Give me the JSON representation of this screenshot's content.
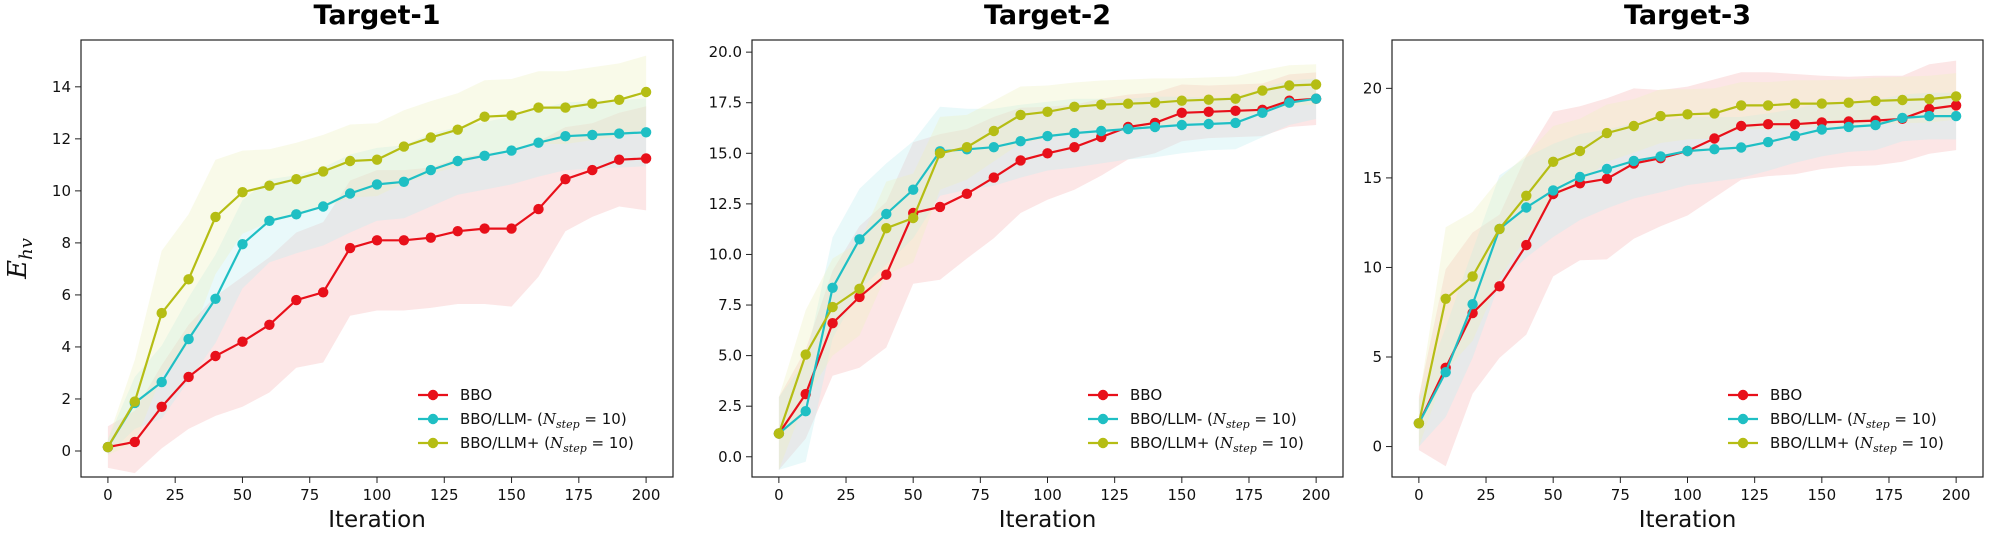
{
  "chart_data": [
    {
      "type": "line",
      "title": "Target-1",
      "xlabel": "Iteration",
      "ylabel": "E_hv",
      "xlim": [
        -10,
        210
      ],
      "ylim": [
        -1,
        15.8
      ],
      "xticks": [
        0,
        25,
        50,
        75,
        100,
        125,
        150,
        175,
        200
      ],
      "yticks": [
        0,
        2,
        4,
        6,
        8,
        10,
        12,
        14
      ],
      "ytick_decimals": 0,
      "x": [
        0,
        10,
        20,
        30,
        40,
        50,
        60,
        70,
        80,
        90,
        100,
        110,
        120,
        130,
        140,
        150,
        160,
        170,
        180,
        190,
        200
      ],
      "legend_position": "lower-right",
      "series": [
        {
          "name": "BBO",
          "color": "#e8101a",
          "fill": "#f6b8b8",
          "values": [
            0.15,
            0.35,
            1.7,
            2.85,
            3.65,
            4.2,
            4.85,
            5.8,
            6.1,
            7.8,
            8.1,
            8.1,
            8.2,
            8.45,
            8.55,
            8.55,
            9.3,
            10.45,
            10.8,
            11.2,
            11.25
          ],
          "band": [
            0.8,
            1.2,
            1.6,
            2.0,
            2.3,
            2.5,
            2.6,
            2.6,
            2.7,
            2.6,
            2.7,
            2.7,
            2.7,
            2.8,
            2.9,
            3.0,
            2.6,
            2.0,
            1.8,
            1.8,
            2.0
          ]
        },
        {
          "name": "BBO/LLM- (N_step = 10)",
          "color": "#1fbfc4",
          "fill": "#bfeef0",
          "values": [
            0.15,
            1.85,
            2.65,
            4.3,
            5.85,
            7.95,
            8.85,
            9.1,
            9.4,
            9.9,
            10.25,
            10.35,
            10.8,
            11.15,
            11.35,
            11.55,
            11.85,
            12.1,
            12.15,
            12.2,
            12.25
          ],
          "band": [
            0.3,
            1.0,
            1.4,
            1.6,
            1.7,
            1.7,
            1.6,
            1.5,
            1.5,
            1.5,
            1.4,
            1.4,
            1.4,
            1.3,
            1.3,
            1.3,
            1.3,
            1.3,
            1.3,
            1.3,
            1.3
          ]
        },
        {
          "name": "BBO/LLM+ (N_step = 10)",
          "color": "#b5bd14",
          "fill": "#eef1bf",
          "values": [
            0.15,
            1.9,
            5.3,
            6.6,
            9.0,
            9.95,
            10.2,
            10.45,
            10.75,
            11.15,
            11.2,
            11.7,
            12.05,
            12.35,
            12.85,
            12.9,
            13.2,
            13.2,
            13.35,
            13.5,
            13.8
          ],
          "band": [
            0.3,
            1.6,
            2.4,
            2.5,
            2.2,
            1.6,
            1.4,
            1.4,
            1.4,
            1.4,
            1.4,
            1.4,
            1.4,
            1.4,
            1.4,
            1.4,
            1.4,
            1.4,
            1.4,
            1.4,
            1.4
          ]
        }
      ]
    },
    {
      "type": "line",
      "title": "Target-2",
      "xlabel": "Iteration",
      "ylabel": "",
      "xlim": [
        -10,
        210
      ],
      "ylim": [
        -1.0,
        20.6
      ],
      "xticks": [
        0,
        25,
        50,
        75,
        100,
        125,
        150,
        175,
        200
      ],
      "yticks": [
        0.0,
        2.5,
        5.0,
        7.5,
        10.0,
        12.5,
        15.0,
        17.5,
        20.0
      ],
      "ytick_decimals": 1,
      "x": [
        0,
        10,
        20,
        30,
        40,
        50,
        60,
        70,
        80,
        90,
        100,
        110,
        120,
        130,
        140,
        150,
        160,
        170,
        180,
        190,
        200
      ],
      "legend_position": "lower-right",
      "series": [
        {
          "name": "BBO",
          "color": "#e8101a",
          "fill": "#f6b8b8",
          "values": [
            1.15,
            3.1,
            6.6,
            7.9,
            9.0,
            12.05,
            12.35,
            13.0,
            13.8,
            14.65,
            15.0,
            15.3,
            15.8,
            16.3,
            16.5,
            17.0,
            17.05,
            17.1,
            17.15,
            17.6,
            17.7
          ],
          "band": [
            1.8,
            2.2,
            2.6,
            3.5,
            3.6,
            3.5,
            3.6,
            3.2,
            3.0,
            2.6,
            2.3,
            2.1,
            1.9,
            1.6,
            1.5,
            1.4,
            1.3,
            1.3,
            1.3,
            1.3,
            1.3
          ]
        },
        {
          "name": "BBO/LLM- (N_step = 10)",
          "color": "#1fbfc4",
          "fill": "#bfeef0",
          "values": [
            1.15,
            2.25,
            8.35,
            10.75,
            12.0,
            13.2,
            15.1,
            15.2,
            15.3,
            15.6,
            15.85,
            16.0,
            16.1,
            16.2,
            16.3,
            16.4,
            16.45,
            16.5,
            17.0,
            17.5,
            17.7
          ],
          "band": [
            1.8,
            2.5,
            2.5,
            2.5,
            2.5,
            2.4,
            2.2,
            2.0,
            1.9,
            1.8,
            1.7,
            1.7,
            1.6,
            1.5,
            1.5,
            1.4,
            1.3,
            1.3,
            1.2,
            1.1,
            1.0
          ]
        },
        {
          "name": "BBO/LLM+ (N_step = 10)",
          "color": "#b5bd14",
          "fill": "#eef1bf",
          "values": [
            1.15,
            5.05,
            7.4,
            8.3,
            11.3,
            11.8,
            15.0,
            15.3,
            16.1,
            16.9,
            17.05,
            17.3,
            17.4,
            17.45,
            17.5,
            17.6,
            17.65,
            17.7,
            18.1,
            18.35,
            18.4
          ],
          "band": [
            1.8,
            2.2,
            2.4,
            2.3,
            2.3,
            2.2,
            1.8,
            1.6,
            1.5,
            1.4,
            1.3,
            1.2,
            1.2,
            1.2,
            1.2,
            1.1,
            1.1,
            1.1,
            1.0,
            1.0,
            1.0
          ]
        }
      ]
    },
    {
      "type": "line",
      "title": "Target-3",
      "xlabel": "Iteration",
      "ylabel": "",
      "xlim": [
        -10,
        210
      ],
      "ylim": [
        -1.7,
        22.7
      ],
      "xticks": [
        0,
        25,
        50,
        75,
        100,
        125,
        150,
        175,
        200
      ],
      "yticks": [
        0,
        5,
        10,
        15,
        20
      ],
      "ytick_decimals": 0,
      "x": [
        0,
        10,
        20,
        30,
        40,
        50,
        60,
        70,
        80,
        90,
        100,
        110,
        120,
        130,
        140,
        150,
        160,
        170,
        180,
        190,
        200
      ],
      "legend_position": "lower-right",
      "series": [
        {
          "name": "BBO",
          "color": "#e8101a",
          "fill": "#f6b8b8",
          "values": [
            1.3,
            4.4,
            7.45,
            8.95,
            11.25,
            14.1,
            14.7,
            14.95,
            15.8,
            16.1,
            16.5,
            17.2,
            17.9,
            18.0,
            18.0,
            18.1,
            18.15,
            18.2,
            18.3,
            18.85,
            19.05
          ],
          "band": [
            1.5,
            5.5,
            4.5,
            4.0,
            5.0,
            4.6,
            4.3,
            4.5,
            4.2,
            3.8,
            3.6,
            3.3,
            3.0,
            2.9,
            2.8,
            2.6,
            2.5,
            2.5,
            2.4,
            2.5,
            2.5
          ]
        },
        {
          "name": "BBO/LLM- (N_step = 10)",
          "color": "#1fbfc4",
          "fill": "#bfeef0",
          "values": [
            1.3,
            4.15,
            7.95,
            12.15,
            13.35,
            14.3,
            15.05,
            15.5,
            15.95,
            16.2,
            16.5,
            16.6,
            16.7,
            17.0,
            17.35,
            17.7,
            17.85,
            17.95,
            18.35,
            18.45,
            18.45
          ],
          "band": [
            1.3,
            2.5,
            3.0,
            3.0,
            2.8,
            2.6,
            2.4,
            2.2,
            2.1,
            2.0,
            1.9,
            1.8,
            1.7,
            1.6,
            1.5,
            1.5,
            1.4,
            1.4,
            1.3,
            1.3,
            1.3
          ]
        },
        {
          "name": "BBO/LLM+ (N_step = 10)",
          "color": "#b5bd14",
          "fill": "#eef1bf",
          "values": [
            1.3,
            8.25,
            9.5,
            12.15,
            14.0,
            15.9,
            16.5,
            17.5,
            17.9,
            18.45,
            18.55,
            18.6,
            19.05,
            19.05,
            19.15,
            19.15,
            19.2,
            19.3,
            19.35,
            19.4,
            19.55
          ],
          "band": [
            1.3,
            4.0,
            3.6,
            2.8,
            2.3,
            2.0,
            1.8,
            1.6,
            1.5,
            1.5,
            1.4,
            1.4,
            1.3,
            1.3,
            1.3,
            1.3,
            1.3,
            1.3,
            1.3,
            1.3,
            1.3
          ]
        }
      ]
    }
  ]
}
